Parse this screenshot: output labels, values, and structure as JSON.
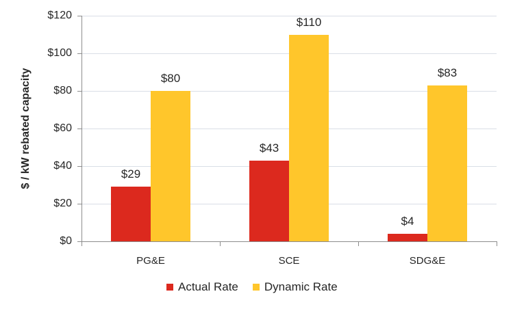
{
  "chart_data": {
    "type": "bar",
    "title": "",
    "xlabel": "",
    "ylabel": "$ / kW rebated capacity",
    "ylim": [
      0,
      120
    ],
    "yticks": [
      "$0",
      "$20",
      "$40",
      "$60",
      "$80",
      "$100",
      "$120"
    ],
    "ytick_values": [
      0,
      20,
      40,
      60,
      80,
      100,
      120
    ],
    "grid": true,
    "legend_position": "bottom",
    "categories": [
      "PG&E",
      "SCE",
      "SDG&E"
    ],
    "series": [
      {
        "name": "Actual Rate",
        "color": "#DC291E",
        "values": [
          29,
          43,
          4
        ],
        "labels": [
          "$29",
          "$43",
          "$4"
        ]
      },
      {
        "name": "Dynamic Rate",
        "color": "#FFC62B",
        "values": [
          80,
          110,
          83
        ],
        "labels": [
          "$80",
          "$110",
          "$83"
        ]
      }
    ]
  }
}
